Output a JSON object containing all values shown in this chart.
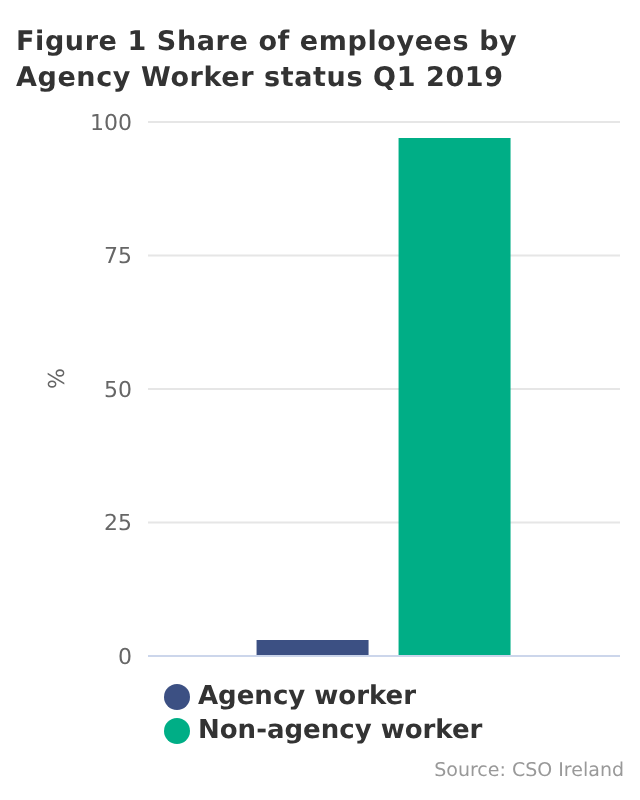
{
  "chart_data": {
    "type": "bar",
    "title": "Figure 1 Share of employees by Agency Worker status Q1 2019",
    "ylabel": "%",
    "categories": [
      null
    ],
    "series": [
      {
        "name": "Agency worker",
        "color": "#3c5083",
        "values": [
          3
        ]
      },
      {
        "name": "Non-agency worker",
        "color": "#00ae86",
        "values": [
          97
        ]
      }
    ],
    "ylim": [
      0,
      100
    ],
    "yticks": [
      0,
      25,
      50,
      75,
      100
    ],
    "grid": "y",
    "legend": "bottom left",
    "annotations": [
      "Source: CSO Ireland"
    ]
  }
}
